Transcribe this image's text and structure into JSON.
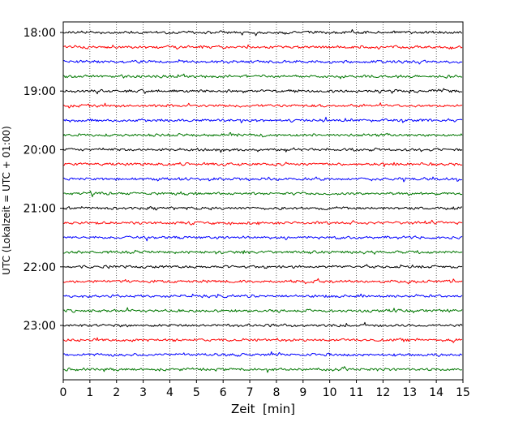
{
  "chart_data": {
    "type": "line",
    "title": "",
    "xlabel": "Zeit  [min]",
    "ylabel": "UTC (Lokalzeit = UTC + 01:00)",
    "xlim": [
      0,
      15
    ],
    "x_ticks": [
      0,
      1,
      2,
      3,
      4,
      5,
      6,
      7,
      8,
      9,
      10,
      11,
      12,
      13,
      14,
      15
    ],
    "y_ticks": [
      "18:00",
      "19:00",
      "20:00",
      "21:00",
      "22:00",
      "23:00"
    ],
    "grid": "vertical dotted lines at each minute",
    "trace_colors": [
      "#000000",
      "#ff0000",
      "#0000ff",
      "#007700"
    ],
    "traces_per_hour": 4,
    "minutes_per_trace": 15,
    "start_time": "18:00",
    "end_time": "23:45",
    "trace_count": 24
  }
}
